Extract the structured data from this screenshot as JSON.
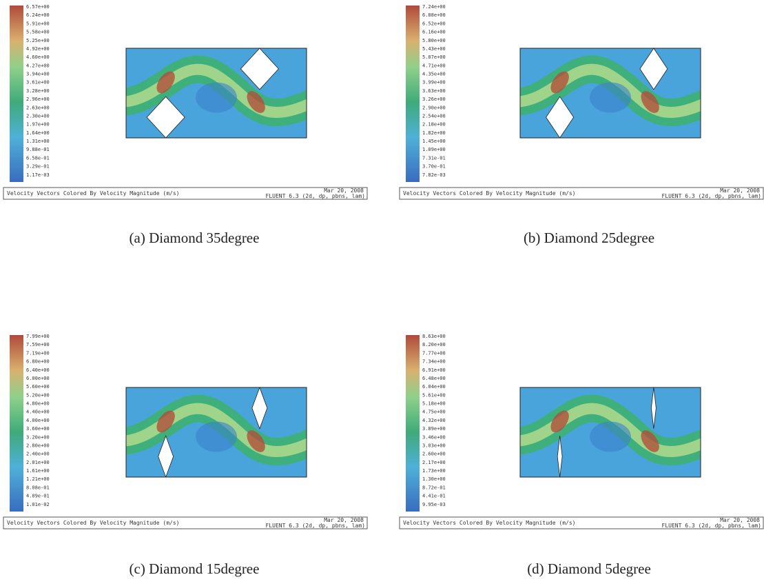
{
  "panels": [
    {
      "caption": "(a)  Diamond 35degree",
      "legend_labels": [
        "6.57e+00",
        "6.24e+00",
        "5.91e+00",
        "5.58e+00",
        "5.25e+00",
        "4.92e+00",
        "4.60e+00",
        "4.27e+00",
        "3.94e+00",
        "3.61e+00",
        "3.28e+00",
        "2.96e+00",
        "2.63e+00",
        "2.30e+00",
        "1.97e+00",
        "1.64e+00",
        "1.31e+00",
        "9.88e-01",
        "6.58e-01",
        "3.29e-01",
        "1.17e-03"
      ],
      "footer": {
        "description": "Velocity Vectors Colored By Velocity Magnitude (m/s)",
        "date": "Mar 20, 2008",
        "solver": "FLUENT 6.3 (2d, dp, pbns, lam)"
      }
    },
    {
      "caption": "(b) Diamond 25degree",
      "legend_labels": [
        "7.24e+00",
        "6.88e+00",
        "6.52e+00",
        "6.16e+00",
        "5.80e+00",
        "5.43e+00",
        "5.07e+00",
        "4.71e+00",
        "4.35e+00",
        "3.99e+00",
        "3.63e+00",
        "3.26e+00",
        "2.90e+00",
        "2.54e+00",
        "2.18e+00",
        "1.82e+00",
        "1.45e+00",
        "1.09e+00",
        "7.31e-01",
        "3.70e-01",
        "7.82e-03"
      ],
      "footer": {
        "description": "Velocity Vectors Colored By Velocity Magnitude (m/s)",
        "date": "Mar 20, 2008",
        "solver": "FLUENT 6.3 (2d, dp, pbns, lam)"
      }
    },
    {
      "caption": "(c) Diamond 15degree",
      "legend_labels": [
        "7.99e+00",
        "7.59e+00",
        "7.19e+00",
        "6.80e+00",
        "6.40e+00",
        "6.00e+00",
        "5.60e+00",
        "5.20e+00",
        "4.80e+00",
        "4.40e+00",
        "4.00e+00",
        "3.60e+00",
        "3.20e+00",
        "2.80e+00",
        "2.40e+00",
        "2.01e+00",
        "1.61e+00",
        "1.21e+00",
        "8.08e-01",
        "4.09e-01",
        "1.01e-02"
      ],
      "footer": {
        "description": "Velocity Vectors Colored By Velocity Magnitude (m/s)",
        "date": "Mar 20, 2008",
        "solver": "FLUENT 6.3 (2d, dp, pbns, lam)"
      }
    },
    {
      "caption": "(d) Diamond 5degree",
      "legend_labels": [
        "8.63e+00",
        "8.20e+00",
        "7.77e+00",
        "7.34e+00",
        "6.91e+00",
        "6.48e+00",
        "6.04e+00",
        "5.61e+00",
        "5.18e+00",
        "4.75e+00",
        "4.32e+00",
        "3.89e+00",
        "3.46e+00",
        "3.03e+00",
        "2.60e+00",
        "2.17e+00",
        "1.73e+00",
        "1.30e+00",
        "8.72e-01",
        "4.41e-01",
        "9.95e-03"
      ],
      "footer": {
        "description": "Velocity Vectors Colored By Velocity Magnitude (m/s)",
        "date": "Mar 20, 2008",
        "solver": "FLUENT 6.3 (2d, dp, pbns, lam)"
      }
    }
  ]
}
